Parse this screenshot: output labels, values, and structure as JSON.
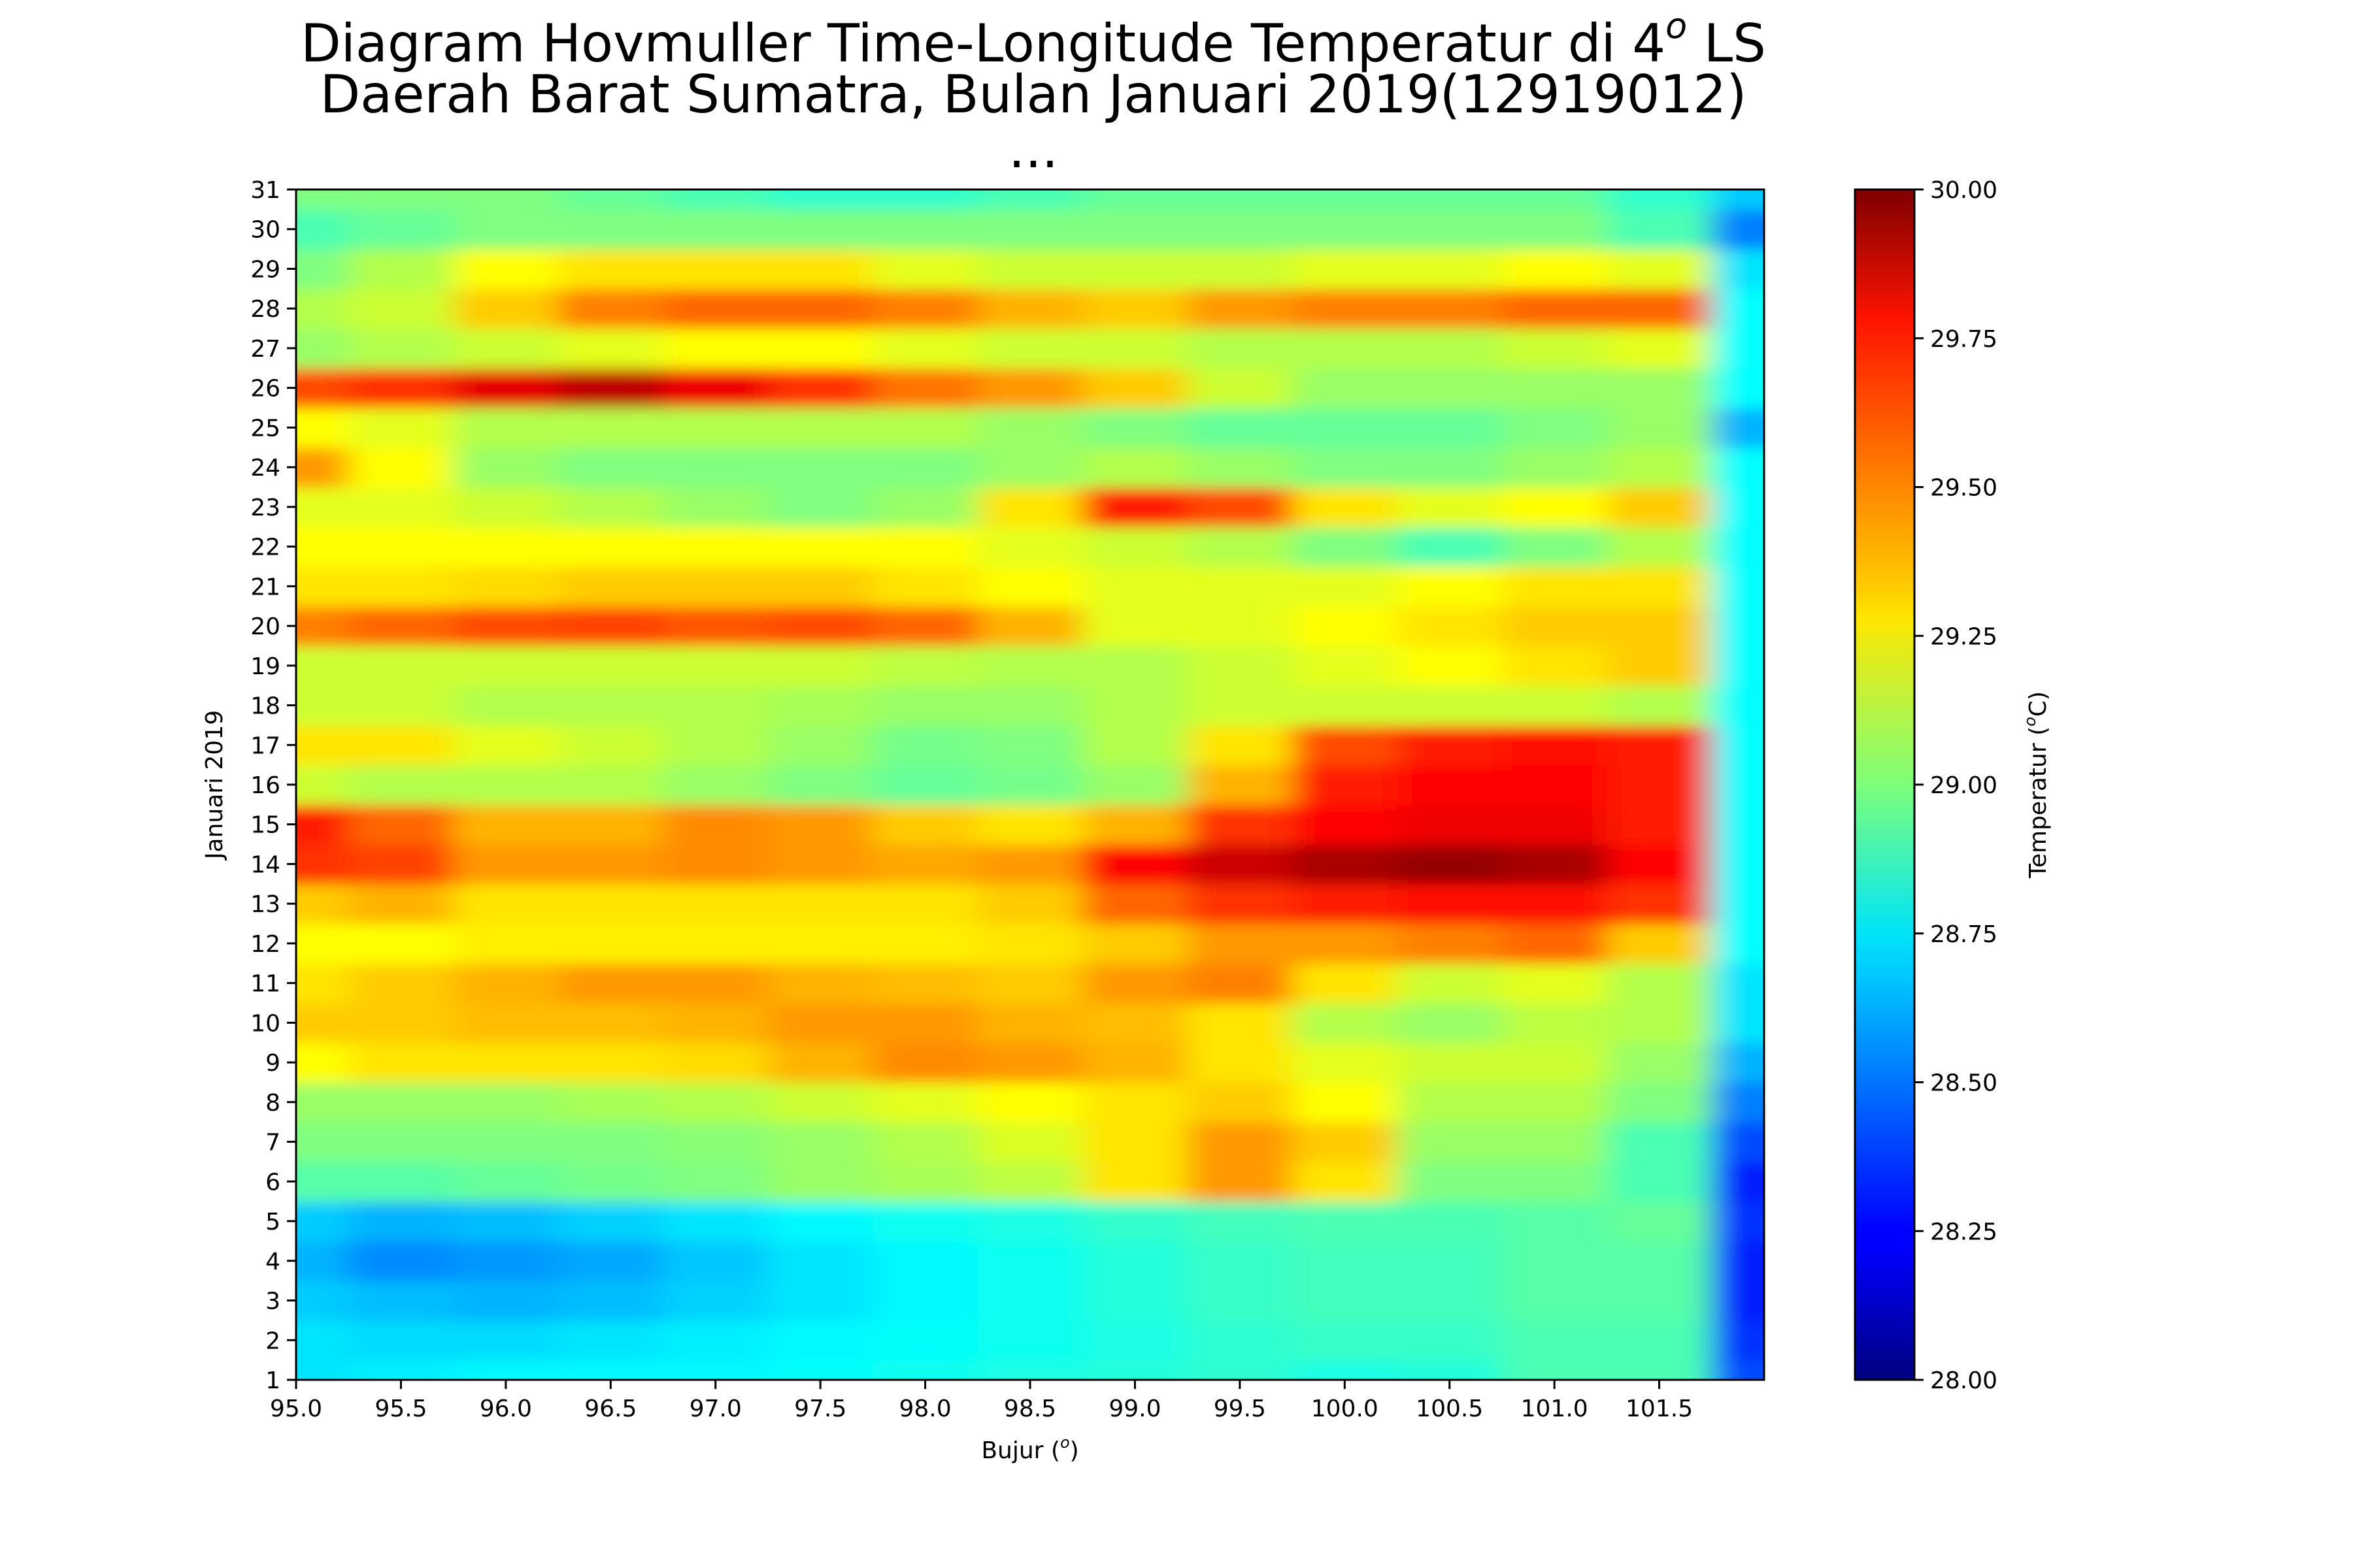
{
  "chart_data": {
    "type": "heatmap",
    "title": {
      "line1_pre": "Diagram Hovmuller Time-Longitude Temperatur di 4",
      "line1_sup": "o",
      "line1_post": " LS",
      "line2": "Daerah Barat Sumatra, Bulan Januari 2019(12919012)",
      "line3": "..."
    },
    "xlabel": {
      "pre": "Bujur (",
      "sup": "o",
      "post": ")"
    },
    "ylabel": "Januari 2019",
    "colorbar_label": {
      "pre": "Temperatur (",
      "sup": "o",
      "post": "C)"
    },
    "xlim": [
      95.0,
      102.0
    ],
    "ylim": [
      1,
      31
    ],
    "x_ticks": [
      "95.0",
      "95.5",
      "96.0",
      "96.5",
      "97.0",
      "97.5",
      "98.0",
      "98.5",
      "99.0",
      "99.5",
      "100.0",
      "100.5",
      "101.0",
      "101.5"
    ],
    "y_ticks": [
      "1",
      "2",
      "3",
      "4",
      "5",
      "6",
      "7",
      "8",
      "9",
      "10",
      "11",
      "12",
      "13",
      "14",
      "15",
      "16",
      "17",
      "18",
      "19",
      "20",
      "21",
      "22",
      "23",
      "24",
      "25",
      "26",
      "27",
      "28",
      "29",
      "30",
      "31"
    ],
    "colorbar_ticks": [
      "28.00",
      "28.25",
      "28.50",
      "28.75",
      "29.00",
      "29.25",
      "29.50",
      "29.75",
      "30.00"
    ],
    "vmin": 28.0,
    "vmax": 30.0,
    "colormap": "jet",
    "x": [
      95.0,
      95.5,
      96.0,
      96.5,
      97.0,
      97.5,
      98.0,
      98.5,
      99.0,
      99.5,
      100.0,
      100.5,
      101.0,
      101.5,
      102.0
    ],
    "y": [
      1,
      2,
      3,
      4,
      5,
      6,
      7,
      8,
      9,
      10,
      11,
      12,
      13,
      14,
      15,
      16,
      17,
      18,
      19,
      20,
      21,
      22,
      23,
      24,
      25,
      26,
      27,
      28,
      29,
      30,
      31
    ],
    "z": [
      [
        28.7,
        28.72,
        28.74,
        28.74,
        28.74,
        28.76,
        28.78,
        28.8,
        28.82,
        28.84,
        28.8,
        28.82,
        28.9,
        28.9,
        28.4
      ],
      [
        28.7,
        28.68,
        28.68,
        28.7,
        28.72,
        28.74,
        28.76,
        28.78,
        28.8,
        28.84,
        28.86,
        28.86,
        28.9,
        28.9,
        28.35
      ],
      [
        28.65,
        28.62,
        28.6,
        28.62,
        28.66,
        28.7,
        28.74,
        28.78,
        28.82,
        28.86,
        28.88,
        28.88,
        28.92,
        28.92,
        28.3
      ],
      [
        28.6,
        28.52,
        28.55,
        28.58,
        28.64,
        28.7,
        28.74,
        28.78,
        28.82,
        28.86,
        28.88,
        28.88,
        28.92,
        28.92,
        28.3
      ],
      [
        28.65,
        28.6,
        28.62,
        28.66,
        28.7,
        28.74,
        28.78,
        28.8,
        28.85,
        28.88,
        28.9,
        28.9,
        28.92,
        28.95,
        28.35
      ],
      [
        28.92,
        28.92,
        28.95,
        28.98,
        29.0,
        29.05,
        29.08,
        29.12,
        29.3,
        29.45,
        29.3,
        29.0,
        29.0,
        28.9,
        28.3
      ],
      [
        29.0,
        29.0,
        29.0,
        29.0,
        29.02,
        29.05,
        29.1,
        29.18,
        29.3,
        29.45,
        29.35,
        29.05,
        29.05,
        28.9,
        28.4
      ],
      [
        29.05,
        29.05,
        29.05,
        29.08,
        29.1,
        29.15,
        29.2,
        29.25,
        29.3,
        29.35,
        29.25,
        29.1,
        29.1,
        29.0,
        28.5
      ],
      [
        29.25,
        29.3,
        29.3,
        29.3,
        29.32,
        29.4,
        29.48,
        29.45,
        29.4,
        29.3,
        29.2,
        29.15,
        29.15,
        29.05,
        28.6
      ],
      [
        29.35,
        29.35,
        29.38,
        29.38,
        29.4,
        29.45,
        29.45,
        29.4,
        29.38,
        29.3,
        29.1,
        29.05,
        29.12,
        29.1,
        28.7
      ],
      [
        29.3,
        29.35,
        29.4,
        29.45,
        29.45,
        29.4,
        29.38,
        29.35,
        29.45,
        29.5,
        29.3,
        29.15,
        29.2,
        29.1,
        28.7
      ],
      [
        29.25,
        29.25,
        29.28,
        29.28,
        29.28,
        29.28,
        29.28,
        29.3,
        29.35,
        29.45,
        29.45,
        29.5,
        29.55,
        29.35,
        28.75
      ],
      [
        29.35,
        29.4,
        29.3,
        29.3,
        29.3,
        29.3,
        29.3,
        29.35,
        29.55,
        29.65,
        29.7,
        29.72,
        29.72,
        29.65,
        28.75
      ],
      [
        29.65,
        29.62,
        29.45,
        29.45,
        29.48,
        29.45,
        29.42,
        29.45,
        29.75,
        29.85,
        29.92,
        29.96,
        29.92,
        29.75,
        28.75
      ],
      [
        29.7,
        29.55,
        29.4,
        29.4,
        29.48,
        29.45,
        29.35,
        29.3,
        29.4,
        29.65,
        29.75,
        29.78,
        29.78,
        29.7,
        28.75
      ],
      [
        29.15,
        29.1,
        29.1,
        29.1,
        29.05,
        29.0,
        28.95,
        28.98,
        29.05,
        29.4,
        29.7,
        29.75,
        29.75,
        29.7,
        28.75
      ],
      [
        29.3,
        29.3,
        29.2,
        29.15,
        29.1,
        29.05,
        28.98,
        29.0,
        29.1,
        29.3,
        29.6,
        29.7,
        29.72,
        29.7,
        28.75
      ],
      [
        29.15,
        29.15,
        29.1,
        29.1,
        29.1,
        29.08,
        29.05,
        29.05,
        29.1,
        29.15,
        29.15,
        29.15,
        29.15,
        29.1,
        28.75
      ],
      [
        29.15,
        29.15,
        29.15,
        29.15,
        29.15,
        29.15,
        29.12,
        29.1,
        29.1,
        29.15,
        29.2,
        29.25,
        29.3,
        29.35,
        28.75
      ],
      [
        29.5,
        29.55,
        29.6,
        29.62,
        29.58,
        29.6,
        29.55,
        29.4,
        29.2,
        29.2,
        29.25,
        29.3,
        29.35,
        29.35,
        28.75
      ],
      [
        29.3,
        29.3,
        29.32,
        29.35,
        29.35,
        29.35,
        29.3,
        29.25,
        29.2,
        29.2,
        29.2,
        29.25,
        29.3,
        29.3,
        28.75
      ],
      [
        29.25,
        29.25,
        29.25,
        29.25,
        29.25,
        29.25,
        29.25,
        29.2,
        29.15,
        29.1,
        29.0,
        28.9,
        29.0,
        29.1,
        28.75
      ],
      [
        29.2,
        29.2,
        29.15,
        29.1,
        29.05,
        29.0,
        29.05,
        29.3,
        29.7,
        29.6,
        29.3,
        29.2,
        29.25,
        29.35,
        28.75
      ],
      [
        29.45,
        29.25,
        29.05,
        29.0,
        29.0,
        29.0,
        29.0,
        29.05,
        29.1,
        29.05,
        29.0,
        29.0,
        29.05,
        29.1,
        28.75
      ],
      [
        29.25,
        29.2,
        29.1,
        29.1,
        29.1,
        29.1,
        29.1,
        29.05,
        29.0,
        28.95,
        28.95,
        28.95,
        29.0,
        29.05,
        28.6
      ],
      [
        29.6,
        29.65,
        29.8,
        29.88,
        29.78,
        29.65,
        29.52,
        29.45,
        29.35,
        29.15,
        29.05,
        29.05,
        29.05,
        29.05,
        28.75
      ],
      [
        29.05,
        29.1,
        29.15,
        29.2,
        29.25,
        29.25,
        29.2,
        29.15,
        29.15,
        29.1,
        29.1,
        29.1,
        29.15,
        29.2,
        28.75
      ],
      [
        29.1,
        29.15,
        29.35,
        29.5,
        29.55,
        29.55,
        29.5,
        29.4,
        29.35,
        29.45,
        29.5,
        29.5,
        29.55,
        29.55,
        28.75
      ],
      [
        29.0,
        29.1,
        29.25,
        29.3,
        29.3,
        29.3,
        29.2,
        29.15,
        29.15,
        29.15,
        29.2,
        29.2,
        29.25,
        29.2,
        28.7
      ],
      [
        28.9,
        28.95,
        29.0,
        29.0,
        29.0,
        29.0,
        29.0,
        29.0,
        29.0,
        29.0,
        29.0,
        29.0,
        29.0,
        28.9,
        28.5
      ],
      [
        29.0,
        29.0,
        29.0,
        28.95,
        28.9,
        28.85,
        28.85,
        28.9,
        28.95,
        28.95,
        28.95,
        28.95,
        28.95,
        28.85,
        28.65
      ]
    ]
  }
}
